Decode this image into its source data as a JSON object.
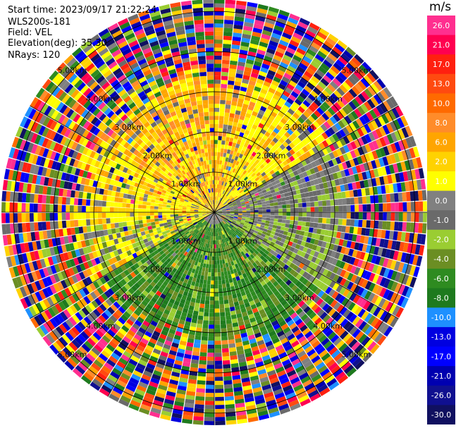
{
  "header": {
    "start_time": "Start time: 2023/09/17 21:22:24",
    "site": "WLS200s-181",
    "field": "Field: VEL",
    "elevation": "Elevation(deg): 35.30",
    "nrays": "NRays: 120"
  },
  "chart_data": {
    "type": "heatmap",
    "projection": "polar-ppi",
    "field": "VEL",
    "units": "m/s",
    "elevation_deg": 35.3,
    "n_rays": 120,
    "range_rings_km": [
      1.0,
      2.0,
      3.0,
      4.0,
      5.0
    ],
    "max_range_km": 5.3,
    "ring_labels": [
      "1.00km",
      "2.00km",
      "3.00km",
      "4.00km",
      "5.00km"
    ],
    "spokes_every_deg": 30,
    "colorbar": {
      "label": "m/s",
      "ticks": [
        "26.0",
        "21.0",
        "17.0",
        "13.0",
        "10.0",
        "8.0",
        "6.0",
        "2.0",
        "1.0",
        "0.0",
        "-1.0",
        "-2.0",
        "-4.0",
        "-6.0",
        "-8.0",
        "-10.0",
        "-13.0",
        "-17.0",
        "-21.0",
        "-26.0",
        "-30.0"
      ],
      "colors": [
        "#ff2f8f",
        "#ff0050",
        "#ff2010",
        "#ff4a10",
        "#ff6a00",
        "#ff8c2a",
        "#ffa500",
        "#ffd200",
        "#ffff00",
        "#808080",
        "#6a6a6a",
        "#9acd32",
        "#6b8e23",
        "#2e8b20",
        "#1e7a1e",
        "#1e90ff",
        "#0000e0",
        "#0000ff",
        "#0000b0",
        "#101090",
        "#101060"
      ]
    },
    "pattern_summary": {
      "northwest_sector_0_3km": "1.0 to 6.0 (yellow/orange)",
      "east_sector_near": "0.0 (gray)",
      "south_southeast_sector_0_3km": "-4.0 to -8.0 (green)",
      "beyond_3km": "noisy, all classes"
    }
  }
}
